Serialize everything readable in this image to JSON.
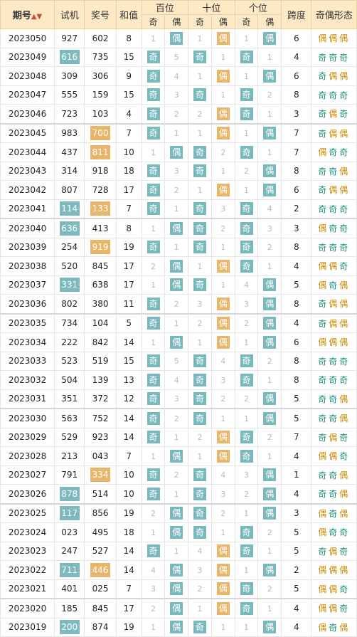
{
  "headers": {
    "issue": "期号",
    "shiji": "试机",
    "jianghao": "奖号",
    "hezhi": "和值",
    "bai": "百位",
    "shi": "十位",
    "ge": "个位",
    "ji": "奇",
    "ou": "偶",
    "kuadu": "跨度",
    "form": "奇偶形态",
    "sort_icon": "sort-arrows-icon"
  },
  "colors": {
    "odd_cell": "#79b9bd",
    "even_cell": "#e8b56a",
    "odd_text": "#1d8f7a",
    "even_text": "#d48a00",
    "header_bg": "#fde9c6"
  },
  "rows": [
    {
      "issue": "2023050",
      "shiji": "927",
      "jiang": "602",
      "sum": "8",
      "b": [
        "1",
        "偶"
      ],
      "s": [
        "1",
        "偶"
      ],
      "g": [
        "1",
        "偶"
      ],
      "span": "6",
      "form": "偶偶偶",
      "hs": false,
      "hj": false
    },
    {
      "issue": "2023049",
      "shiji": "616",
      "jiang": "735",
      "sum": "15",
      "b": [
        "奇",
        "5"
      ],
      "s": [
        "奇",
        "1"
      ],
      "g": [
        "奇",
        "1"
      ],
      "span": "4",
      "form": "奇奇奇",
      "hs": true,
      "hj": false
    },
    {
      "issue": "2023048",
      "shiji": "309",
      "jiang": "306",
      "sum": "9",
      "b": [
        "奇",
        "4"
      ],
      "s": [
        "1",
        "偶"
      ],
      "g": [
        "1",
        "偶"
      ],
      "span": "6",
      "form": "奇偶偶",
      "hs": false,
      "hj": false
    },
    {
      "issue": "2023047",
      "shiji": "555",
      "jiang": "159",
      "sum": "15",
      "b": [
        "奇",
        "3"
      ],
      "s": [
        "奇",
        "1"
      ],
      "g": [
        "奇",
        "2"
      ],
      "span": "8",
      "form": "奇奇奇",
      "hs": false,
      "hj": false
    },
    {
      "issue": "2023046",
      "shiji": "723",
      "jiang": "103",
      "sum": "4",
      "b": [
        "奇",
        "2"
      ],
      "s": [
        "2",
        "偶"
      ],
      "g": [
        "奇",
        "1"
      ],
      "span": "3",
      "form": "奇偶奇",
      "hs": false,
      "hj": false
    },
    {
      "issue": "2023045",
      "shiji": "983",
      "jiang": "700",
      "sum": "7",
      "b": [
        "奇",
        "1"
      ],
      "s": [
        "1",
        "偶"
      ],
      "g": [
        "1",
        "偶"
      ],
      "span": "7",
      "form": "奇偶偶",
      "hs": false,
      "hj": true
    },
    {
      "issue": "2023044",
      "shiji": "437",
      "jiang": "811",
      "sum": "10",
      "b": [
        "1",
        "偶"
      ],
      "s": [
        "奇",
        "2"
      ],
      "g": [
        "奇",
        "1"
      ],
      "span": "7",
      "form": "偶奇奇",
      "hs": false,
      "hj": true
    },
    {
      "issue": "2023043",
      "shiji": "314",
      "jiang": "918",
      "sum": "18",
      "b": [
        "奇",
        "3"
      ],
      "s": [
        "奇",
        "1"
      ],
      "g": [
        "2",
        "偶"
      ],
      "span": "8",
      "form": "奇奇偶",
      "hs": false,
      "hj": false
    },
    {
      "issue": "2023042",
      "shiji": "807",
      "jiang": "728",
      "sum": "17",
      "b": [
        "奇",
        "2"
      ],
      "s": [
        "1",
        "偶"
      ],
      "g": [
        "1",
        "偶"
      ],
      "span": "6",
      "form": "奇偶偶",
      "hs": false,
      "hj": false
    },
    {
      "issue": "2023041",
      "shiji": "114",
      "jiang": "133",
      "sum": "7",
      "b": [
        "奇",
        "1"
      ],
      "s": [
        "奇",
        "3"
      ],
      "g": [
        "奇",
        "4"
      ],
      "span": "2",
      "form": "奇奇奇",
      "hs": true,
      "hj": true
    },
    {
      "issue": "2023040",
      "shiji": "636",
      "jiang": "413",
      "sum": "8",
      "b": [
        "1",
        "偶"
      ],
      "s": [
        "奇",
        "2"
      ],
      "g": [
        "奇",
        "3"
      ],
      "span": "3",
      "form": "偶奇奇",
      "hs": true,
      "hj": false
    },
    {
      "issue": "2023039",
      "shiji": "254",
      "jiang": "919",
      "sum": "19",
      "b": [
        "奇",
        "1"
      ],
      "s": [
        "奇",
        "1"
      ],
      "g": [
        "奇",
        "2"
      ],
      "span": "8",
      "form": "奇奇奇",
      "hs": false,
      "hj": true
    },
    {
      "issue": "2023038",
      "shiji": "520",
      "jiang": "845",
      "sum": "17",
      "b": [
        "2",
        "偶"
      ],
      "s": [
        "1",
        "偶"
      ],
      "g": [
        "奇",
        "1"
      ],
      "span": "4",
      "form": "偶偶奇",
      "hs": false,
      "hj": false
    },
    {
      "issue": "2023037",
      "shiji": "331",
      "jiang": "638",
      "sum": "17",
      "b": [
        "1",
        "偶"
      ],
      "s": [
        "奇",
        "1"
      ],
      "g": [
        "4",
        "偶"
      ],
      "span": "5",
      "form": "偶奇偶",
      "hs": true,
      "hj": false
    },
    {
      "issue": "2023036",
      "shiji": "802",
      "jiang": "380",
      "sum": "11",
      "b": [
        "奇",
        "2"
      ],
      "s": [
        "3",
        "偶"
      ],
      "g": [
        "3",
        "偶"
      ],
      "span": "8",
      "form": "奇偶偶",
      "hs": false,
      "hj": false
    },
    {
      "issue": "2023035",
      "shiji": "734",
      "jiang": "104",
      "sum": "5",
      "b": [
        "奇",
        "1"
      ],
      "s": [
        "2",
        "偶"
      ],
      "g": [
        "2",
        "偶"
      ],
      "span": "4",
      "form": "奇偶偶",
      "hs": false,
      "hj": false
    },
    {
      "issue": "2023034",
      "shiji": "222",
      "jiang": "842",
      "sum": "14",
      "b": [
        "1",
        "偶"
      ],
      "s": [
        "1",
        "偶"
      ],
      "g": [
        "1",
        "偶"
      ],
      "span": "6",
      "form": "偶偶偶",
      "hs": false,
      "hj": false
    },
    {
      "issue": "2023033",
      "shiji": "523",
      "jiang": "519",
      "sum": "15",
      "b": [
        "奇",
        "5"
      ],
      "s": [
        "奇",
        "4"
      ],
      "g": [
        "奇",
        "2"
      ],
      "span": "8",
      "form": "奇奇奇",
      "hs": false,
      "hj": false
    },
    {
      "issue": "2023032",
      "shiji": "504",
      "jiang": "139",
      "sum": "13",
      "b": [
        "奇",
        "4"
      ],
      "s": [
        "奇",
        "3"
      ],
      "g": [
        "奇",
        "1"
      ],
      "span": "8",
      "form": "奇奇奇",
      "hs": false,
      "hj": false
    },
    {
      "issue": "2023031",
      "shiji": "351",
      "jiang": "372",
      "sum": "12",
      "b": [
        "奇",
        "3"
      ],
      "s": [
        "奇",
        "2"
      ],
      "g": [
        "2",
        "偶"
      ],
      "span": "5",
      "form": "奇奇偶",
      "hs": false,
      "hj": false
    },
    {
      "issue": "2023030",
      "shiji": "563",
      "jiang": "752",
      "sum": "14",
      "b": [
        "奇",
        "2"
      ],
      "s": [
        "奇",
        "1"
      ],
      "g": [
        "1",
        "偶"
      ],
      "span": "5",
      "form": "奇奇偶",
      "hs": false,
      "hj": false
    },
    {
      "issue": "2023029",
      "shiji": "529",
      "jiang": "923",
      "sum": "14",
      "b": [
        "奇",
        "1"
      ],
      "s": [
        "2",
        "偶"
      ],
      "g": [
        "奇",
        "2"
      ],
      "span": "7",
      "form": "奇偶奇",
      "hs": false,
      "hj": false
    },
    {
      "issue": "2023028",
      "shiji": "213",
      "jiang": "043",
      "sum": "7",
      "b": [
        "1",
        "偶"
      ],
      "s": [
        "1",
        "偶"
      ],
      "g": [
        "奇",
        "1"
      ],
      "span": "4",
      "form": "偶偶奇",
      "hs": false,
      "hj": false
    },
    {
      "issue": "2023027",
      "shiji": "791",
      "jiang": "334",
      "sum": "10",
      "b": [
        "奇",
        "2"
      ],
      "s": [
        "奇",
        "4"
      ],
      "g": [
        "3",
        "偶"
      ],
      "span": "1",
      "form": "奇奇偶",
      "hs": false,
      "hj": true
    },
    {
      "issue": "2023026",
      "shiji": "878",
      "jiang": "514",
      "sum": "10",
      "b": [
        "奇",
        "1"
      ],
      "s": [
        "奇",
        "3"
      ],
      "g": [
        "2",
        "偶"
      ],
      "span": "4",
      "form": "奇奇偶",
      "hs": true,
      "hj": false
    },
    {
      "issue": "2023025",
      "shiji": "117",
      "jiang": "856",
      "sum": "19",
      "b": [
        "2",
        "偶"
      ],
      "s": [
        "奇",
        "2"
      ],
      "g": [
        "1",
        "偶"
      ],
      "span": "3",
      "form": "偶奇偶",
      "hs": true,
      "hj": false
    },
    {
      "issue": "2023024",
      "shiji": "023",
      "jiang": "495",
      "sum": "18",
      "b": [
        "1",
        "偶"
      ],
      "s": [
        "奇",
        "1"
      ],
      "g": [
        "奇",
        "2"
      ],
      "span": "5",
      "form": "偶奇奇",
      "hs": false,
      "hj": false
    },
    {
      "issue": "2023023",
      "shiji": "247",
      "jiang": "527",
      "sum": "14",
      "b": [
        "奇",
        "1"
      ],
      "s": [
        "4",
        "偶"
      ],
      "g": [
        "奇",
        "1"
      ],
      "span": "5",
      "form": "奇偶奇",
      "hs": false,
      "hj": false
    },
    {
      "issue": "2023022",
      "shiji": "711",
      "jiang": "446",
      "sum": "14",
      "b": [
        "4",
        "偶"
      ],
      "s": [
        "3",
        "偶"
      ],
      "g": [
        "1",
        "偶"
      ],
      "span": "2",
      "form": "偶偶偶",
      "hs": true,
      "hj": true
    },
    {
      "issue": "2023021",
      "shiji": "401",
      "jiang": "025",
      "sum": "7",
      "b": [
        "3",
        "偶"
      ],
      "s": [
        "2",
        "偶"
      ],
      "g": [
        "奇",
        "2"
      ],
      "span": "5",
      "form": "偶偶奇",
      "hs": false,
      "hj": false
    },
    {
      "issue": "2023020",
      "shiji": "185",
      "jiang": "845",
      "sum": "17",
      "b": [
        "2",
        "偶"
      ],
      "s": [
        "1",
        "偶"
      ],
      "g": [
        "奇",
        "1"
      ],
      "span": "4",
      "form": "偶偶奇",
      "hs": false,
      "hj": false
    },
    {
      "issue": "2023019",
      "shiji": "200",
      "jiang": "874",
      "sum": "19",
      "b": [
        "1",
        "偶"
      ],
      "s": [
        "奇",
        "1"
      ],
      "g": [
        "1",
        "偶"
      ],
      "span": "4",
      "form": "偶奇偶",
      "hs": true,
      "hj": false
    }
  ]
}
